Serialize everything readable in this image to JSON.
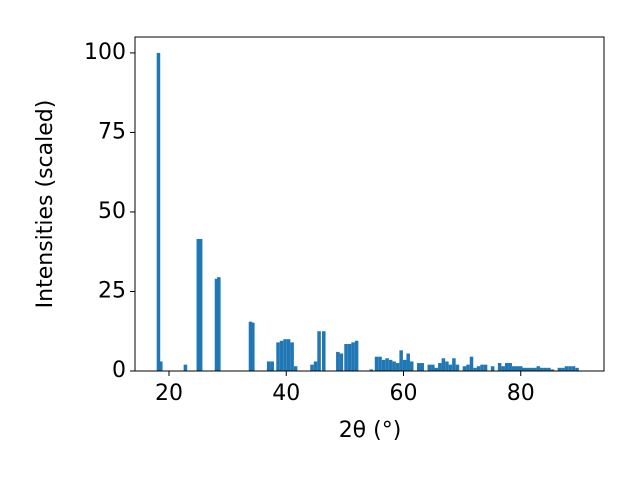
{
  "chart_data": {
    "type": "bar",
    "x_label": "2θ (°)",
    "y_label": "Intensities (scaled)",
    "color": "#1f77b4",
    "x": [
      18.2,
      18.6,
      22.8,
      25.0,
      25.4,
      28.1,
      28.5,
      33.9,
      34.3,
      37.0,
      37.6,
      38.6,
      39.2,
      39.8,
      40.4,
      41.0,
      41.6,
      44.4,
      45.0,
      45.6,
      46.4,
      48.8,
      49.4,
      50.2,
      50.8,
      51.4,
      52.0,
      54.5,
      55.4,
      56.0,
      56.6,
      57.2,
      57.8,
      58.4,
      59.0,
      59.6,
      60.2,
      60.8,
      61.4,
      62.6,
      63.2,
      64.4,
      65.0,
      65.6,
      66.2,
      66.8,
      67.4,
      68.0,
      68.6,
      69.2,
      70.4,
      71.0,
      71.6,
      72.2,
      72.8,
      73.4,
      74.0,
      75.2,
      76.4,
      77.0,
      77.6,
      78.2,
      78.8,
      79.4,
      80.0,
      80.6,
      81.2,
      81.8,
      82.4,
      83.0,
      83.6,
      84.2,
      84.8,
      85.4,
      86.6,
      87.2,
      87.8,
      88.4,
      89.0,
      89.6
    ],
    "values": [
      100,
      3,
      2,
      41.5,
      41.5,
      29,
      29.5,
      15.5,
      15.2,
      3,
      3,
      9,
      9.5,
      10,
      10,
      9,
      1.5,
      2,
      3,
      12.5,
      12.5,
      6,
      5.5,
      8.5,
      8.5,
      9,
      9.5,
      0.5,
      4.5,
      4.5,
      3.5,
      4,
      3.5,
      3,
      2.5,
      6.5,
      3.5,
      5.5,
      3,
      2.5,
      2.5,
      2,
      2,
      1,
      2.5,
      4,
      3,
      2,
      4,
      2,
      1.5,
      2,
      4.5,
      1,
      1.5,
      2,
      2,
      1.5,
      2.5,
      1.5,
      2.5,
      2.5,
      1.5,
      1.5,
      1.5,
      1,
      1,
      1,
      1,
      1.5,
      1,
      1,
      1,
      0.5,
      1,
      1,
      1.5,
      1.5,
      1.5,
      1
    ],
    "xlim": [
      14.2,
      94.2
    ],
    "ylim": [
      0,
      105
    ],
    "xticks": [
      20,
      40,
      60,
      80
    ],
    "yticks": [
      0,
      25,
      50,
      75,
      100
    ]
  }
}
